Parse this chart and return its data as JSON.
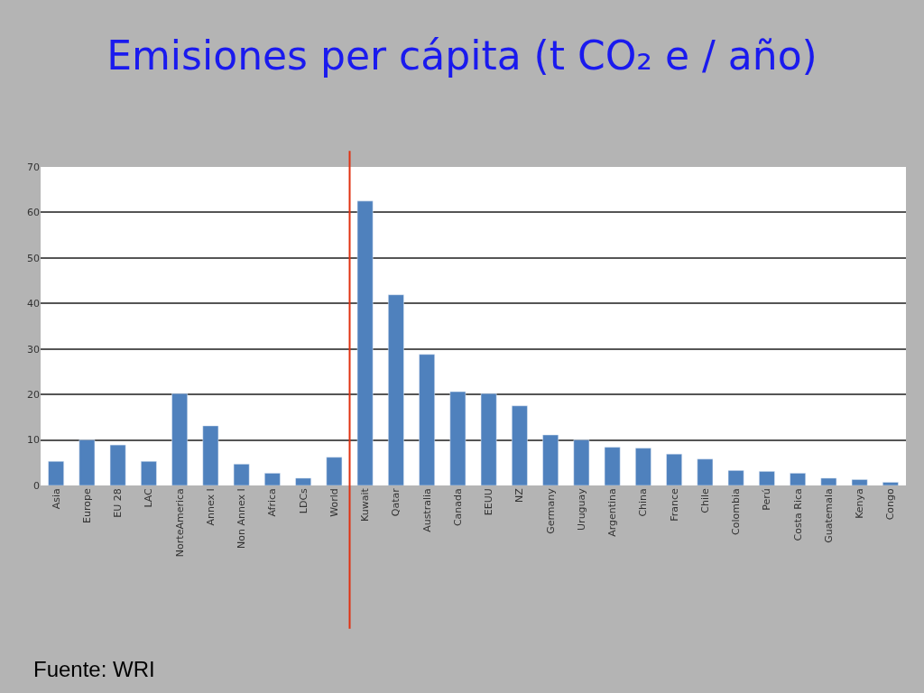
{
  "chart_data": {
    "type": "bar",
    "title": "Emisiones per cápita (t CO₂ e / año)",
    "categories": [
      "Asia",
      "Europe",
      "EU 28",
      "LAC",
      "NorteAmerica",
      "Annex I",
      "Non Annex I",
      "Africa",
      "LDCs",
      "World",
      "Kuwait",
      "Qatar",
      "Australia",
      "Canada",
      "EEUU",
      "NZ",
      "Germany",
      "Uruguay",
      "Argentina",
      "China",
      "France",
      "Chile",
      "Colombia",
      "Perú",
      "Costa Rica",
      "Guatemala",
      "Kenya",
      "Congo"
    ],
    "values": [
      5.3,
      10,
      8.9,
      5.3,
      20.2,
      13.1,
      4.7,
      2.7,
      1.6,
      6.2,
      62.5,
      41.9,
      28.8,
      20.6,
      20.2,
      17.5,
      11.1,
      10,
      8.4,
      8.2,
      6.9,
      5.8,
      3.3,
      3.1,
      2.7,
      1.6,
      1.3,
      0.7
    ],
    "color": "#4f81bd",
    "ylim": [
      0,
      70
    ],
    "yticks": [
      0,
      10,
      20,
      30,
      40,
      50,
      60,
      70
    ],
    "grid": "y",
    "ref_lines": [
      {
        "axis": "x",
        "value": "Kuwait",
        "color": "#e03010"
      }
    ],
    "annotations": [
      "Fuente: WRI"
    ]
  }
}
